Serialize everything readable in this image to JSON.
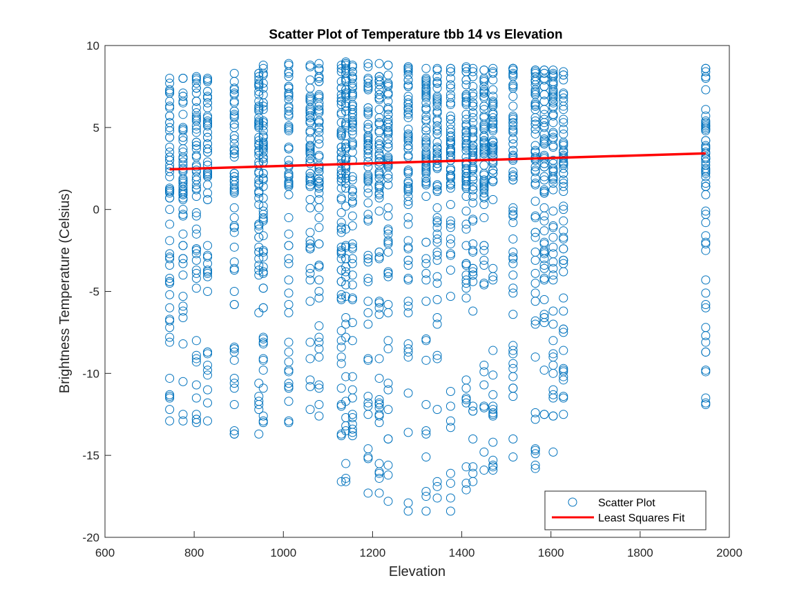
{
  "chart_data": {
    "type": "scatter",
    "title": "Scatter Plot of Temperature tbb 14 vs Elevation",
    "xlabel": "Elevation",
    "ylabel": "Brightness Temperature (Celsius)",
    "xlim": [
      600,
      2000
    ],
    "ylim": [
      -20,
      10
    ],
    "xticks": [
      "600",
      "800",
      "1000",
      "1200",
      "1400",
      "1600",
      "1800",
      "2000"
    ],
    "yticks": [
      "-20",
      "-15",
      "-10",
      "-5",
      "0",
      "5",
      "10"
    ],
    "grid": false,
    "legend_position": "bottom-right",
    "colors": {
      "scatter": "#0072BD",
      "fit": "#FF0000"
    },
    "elevations": [
      745,
      775,
      805,
      830,
      890,
      945,
      955,
      1012,
      1060,
      1080,
      1130,
      1140,
      1155,
      1190,
      1215,
      1235,
      1280,
      1320,
      1345,
      1375,
      1410,
      1425,
      1450,
      1470,
      1515,
      1565,
      1585,
      1605,
      1628,
      1947
    ],
    "column_ranges": [
      [
        -12.9,
        8.0
      ],
      [
        -12.9,
        8.0
      ],
      [
        -13.0,
        8.1
      ],
      [
        -12.9,
        8.0
      ],
      [
        -13.7,
        8.3
      ],
      [
        -13.7,
        8.3
      ],
      [
        -13.0,
        8.8
      ],
      [
        -13.0,
        8.9
      ],
      [
        -12.2,
        8.8
      ],
      [
        -12.6,
        8.9
      ],
      [
        -16.6,
        8.8
      ],
      [
        -16.6,
        9.0
      ],
      [
        -13.8,
        8.8
      ],
      [
        -17.3,
        8.9
      ],
      [
        -17.3,
        8.9
      ],
      [
        -17.8,
        8.8
      ],
      [
        -18.4,
        8.7
      ],
      [
        -18.4,
        8.6
      ],
      [
        -17.6,
        8.6
      ],
      [
        -18.4,
        8.6
      ],
      [
        -17.1,
        8.7
      ],
      [
        -16.6,
        8.6
      ],
      [
        -15.9,
        8.5
      ],
      [
        -15.9,
        8.6
      ],
      [
        -15.1,
        8.6
      ],
      [
        -15.8,
        8.5
      ],
      [
        -12.5,
        8.5
      ],
      [
        -14.8,
        8.5
      ],
      [
        -12.5,
        8.4
      ],
      [
        -11.9,
        8.6
      ]
    ],
    "series": [
      {
        "name": "Scatter Plot",
        "type": "scatter"
      },
      {
        "name": "Least Squares Fit",
        "type": "line",
        "x": [
          745,
          1947
        ],
        "y": [
          2.45,
          3.42
        ]
      }
    ]
  }
}
